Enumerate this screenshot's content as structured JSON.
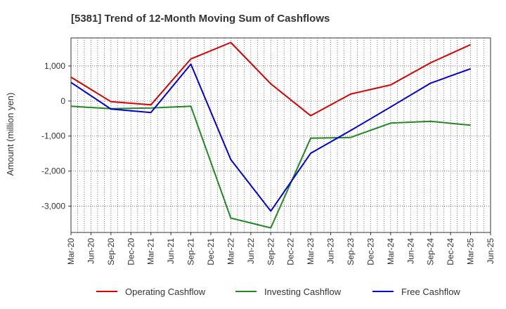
{
  "chart_data": {
    "type": "line",
    "title": "[5381]  Trend of 12-Month Moving Sum of Cashflows",
    "xlabel": "",
    "ylabel": "Amount (million yen)",
    "x_ticks": [
      "Mar-20",
      "Jun-20",
      "Sep-20",
      "Dec-20",
      "Mar-21",
      "Jun-21",
      "Sep-21",
      "Dec-21",
      "Mar-22",
      "Jun-22",
      "Sep-22",
      "Dec-22",
      "Mar-23",
      "Jun-23",
      "Sep-23",
      "Dec-23",
      "Mar-24",
      "Jun-24",
      "Sep-24",
      "Dec-24",
      "Mar-25",
      "Jun-25"
    ],
    "y_ticks": [
      1000,
      0,
      -1000,
      -2000,
      -3000
    ],
    "y_tick_labels": [
      "1,000",
      "0",
      "-1,000",
      "-2,000",
      "-3,000"
    ],
    "ylim": [
      -3750,
      1800
    ],
    "grid": true,
    "legend_position": "bottom",
    "series": [
      {
        "name": "Operating Cashflow",
        "color": "#dd0000",
        "points": [
          {
            "x": "Mar-20",
            "y": 680
          },
          {
            "x": "Sep-20",
            "y": -20
          },
          {
            "x": "Mar-21",
            "y": -110
          },
          {
            "x": "Sep-21",
            "y": 1200
          },
          {
            "x": "Mar-22",
            "y": 1670
          },
          {
            "x": "Sep-22",
            "y": 490
          },
          {
            "x": "Mar-23",
            "y": -420
          },
          {
            "x": "Sep-23",
            "y": 200
          },
          {
            "x": "Mar-24",
            "y": 460
          },
          {
            "x": "Sep-24",
            "y": 1090
          },
          {
            "x": "Mar-25",
            "y": 1610
          }
        ]
      },
      {
        "name": "Investing Cashflow",
        "color": "#228822",
        "points": [
          {
            "x": "Mar-20",
            "y": -150
          },
          {
            "x": "Sep-20",
            "y": -220
          },
          {
            "x": "Mar-21",
            "y": -200
          },
          {
            "x": "Sep-21",
            "y": -150
          },
          {
            "x": "Mar-22",
            "y": -3340
          },
          {
            "x": "Sep-22",
            "y": -3620
          },
          {
            "x": "Mar-23",
            "y": -1060
          },
          {
            "x": "Sep-23",
            "y": -1040
          },
          {
            "x": "Mar-24",
            "y": -630
          },
          {
            "x": "Sep-24",
            "y": -580
          },
          {
            "x": "Mar-25",
            "y": -690
          }
        ]
      },
      {
        "name": "Free Cashflow",
        "color": "#0000dd",
        "points": [
          {
            "x": "Mar-20",
            "y": 530
          },
          {
            "x": "Sep-20",
            "y": -230
          },
          {
            "x": "Mar-21",
            "y": -330
          },
          {
            "x": "Sep-21",
            "y": 1050
          },
          {
            "x": "Mar-22",
            "y": -1670
          },
          {
            "x": "Sep-22",
            "y": -3140
          },
          {
            "x": "Mar-23",
            "y": -1490
          },
          {
            "x": "Sep-23",
            "y": -840
          },
          {
            "x": "Mar-24",
            "y": -170
          },
          {
            "x": "Sep-24",
            "y": 510
          },
          {
            "x": "Mar-25",
            "y": 920
          }
        ]
      }
    ]
  }
}
